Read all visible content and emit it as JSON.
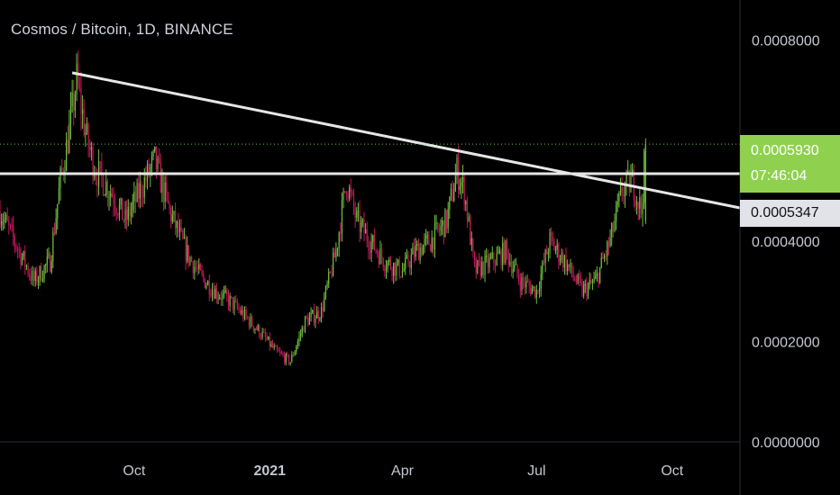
{
  "header": {
    "title": "Cosmos / Bitcoin, 1D, BINANCE"
  },
  "price_badge": {
    "price": "0.0005930",
    "countdown": "07:46:04"
  },
  "line_badge": {
    "price": "0.0005347"
  },
  "colors": {
    "up": "#6fbf3d",
    "down": "#c2185b",
    "trendline": "#e6e6e6",
    "badge_green": "#8fd14f",
    "badge_white": "#e1e3e8",
    "grid": "#2a2e39"
  },
  "chart_data": {
    "type": "candlestick",
    "title": "Cosmos / Bitcoin, 1D, BINANCE",
    "ylim": [
      0,
      0.00088
    ],
    "y_ticks": [
      {
        "label": "0.0008000",
        "value": 0.0008
      },
      {
        "label": "0.0004000",
        "value": 0.0004
      },
      {
        "label": "0.0002000",
        "value": 0.0002
      },
      {
        "label": "0.0000000",
        "value": 0.0
      }
    ],
    "x_ticks": [
      {
        "label": "Oct",
        "date": "2020-10-01",
        "bold": false
      },
      {
        "label": "2021",
        "date": "2021-01-01",
        "bold": true
      },
      {
        "label": "Apr",
        "date": "2021-04-01",
        "bold": false
      },
      {
        "label": "Jul",
        "date": "2021-07-01",
        "bold": false
      },
      {
        "label": "Oct",
        "date": "2021-10-01",
        "bold": false
      }
    ],
    "x_range": [
      "2020-07-02",
      "2021-11-16"
    ],
    "last_price": 0.000593,
    "price_path": [
      [
        "2020-07-02",
        0.00046
      ],
      [
        "2020-07-15",
        0.00038
      ],
      [
        "2020-07-25",
        0.00032
      ],
      [
        "2020-08-05",
        0.00036
      ],
      [
        "2020-08-12",
        0.00052
      ],
      [
        "2020-08-18",
        0.00062
      ],
      [
        "2020-08-23",
        0.00072
      ],
      [
        "2020-08-30",
        0.0006
      ],
      [
        "2020-09-05",
        0.00054
      ],
      [
        "2020-09-15",
        0.0005
      ],
      [
        "2020-09-25",
        0.00044
      ],
      [
        "2020-10-05",
        0.0005
      ],
      [
        "2020-10-15",
        0.00056
      ],
      [
        "2020-10-25",
        0.00046
      ],
      [
        "2020-11-05",
        0.00038
      ],
      [
        "2020-11-15",
        0.00033
      ],
      [
        "2020-11-25",
        0.0003
      ],
      [
        "2020-12-05",
        0.00028
      ],
      [
        "2020-12-15",
        0.00025
      ],
      [
        "2020-12-25",
        0.00022
      ],
      [
        "2021-01-05",
        0.00018
      ],
      [
        "2021-01-15",
        0.00016
      ],
      [
        "2021-01-25",
        0.00024
      ],
      [
        "2021-02-05",
        0.00026
      ],
      [
        "2021-02-15",
        0.00038
      ],
      [
        "2021-02-22",
        0.00052
      ],
      [
        "2021-03-01",
        0.00044
      ],
      [
        "2021-03-10",
        0.0004
      ],
      [
        "2021-03-20",
        0.00036
      ],
      [
        "2021-04-01",
        0.00034
      ],
      [
        "2021-04-10",
        0.00038
      ],
      [
        "2021-04-20",
        0.0004
      ],
      [
        "2021-05-01",
        0.00044
      ],
      [
        "2021-05-08",
        0.00054
      ],
      [
        "2021-05-13",
        0.0005
      ],
      [
        "2021-05-20",
        0.00034
      ],
      [
        "2021-06-01",
        0.00036
      ],
      [
        "2021-06-10",
        0.00038
      ],
      [
        "2021-06-20",
        0.00032
      ],
      [
        "2021-07-01",
        0.0003
      ],
      [
        "2021-07-10",
        0.0004
      ],
      [
        "2021-07-20",
        0.00036
      ],
      [
        "2021-08-01",
        0.0003
      ],
      [
        "2021-08-10",
        0.00032
      ],
      [
        "2021-08-20",
        0.0004
      ],
      [
        "2021-08-28",
        0.0005
      ],
      [
        "2021-09-04",
        0.00052
      ],
      [
        "2021-09-10",
        0.00046
      ],
      [
        "2021-09-13",
        0.00059
      ]
    ],
    "lines": [
      {
        "kind": "horizontal",
        "value": 0.000534
      },
      {
        "kind": "trend",
        "from": [
          "2020-08-20",
          0.000735
        ],
        "to": [
          "2021-11-16",
          0.000466
        ],
        "label": "0.0005347"
      },
      {
        "kind": "dotted-last-price",
        "value": 0.000593
      }
    ]
  }
}
